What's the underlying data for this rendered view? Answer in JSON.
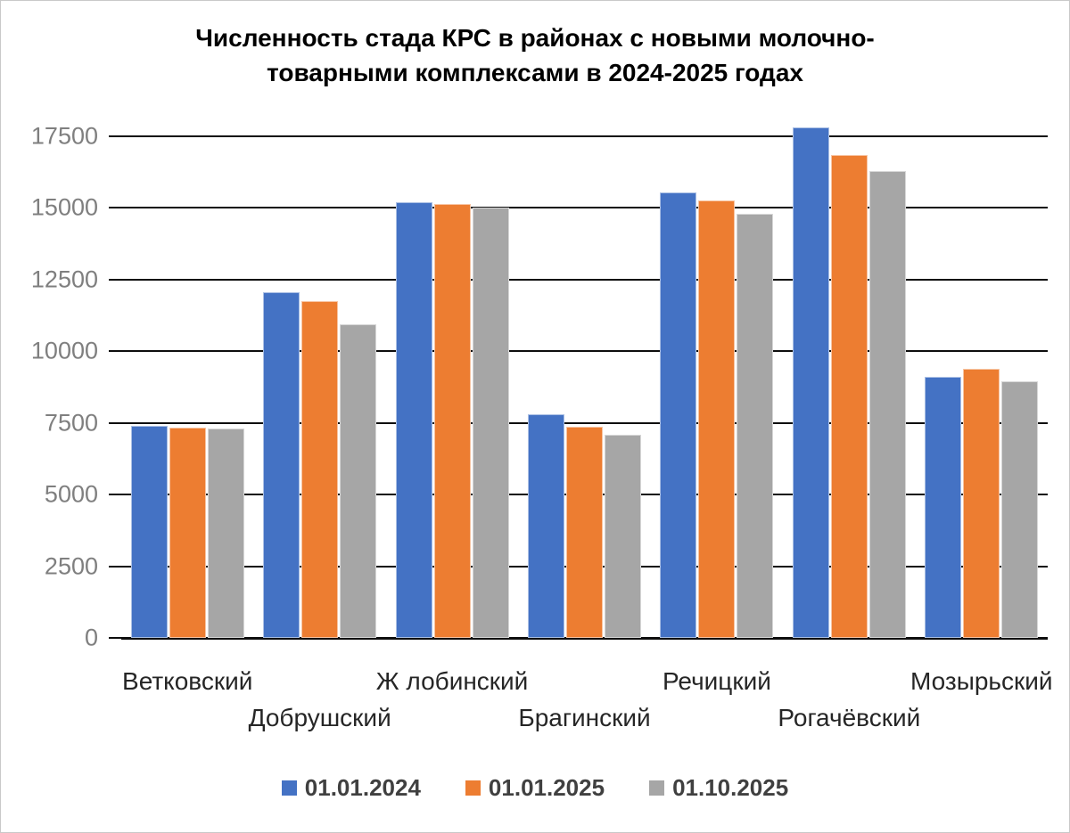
{
  "chart_data": {
    "type": "bar",
    "title": "Численность стада КРС в районах с новыми молочно-товарными комплексами в 2024-2025 годах",
    "title_lines": [
      "Численность стада КРС в районах с новыми молочно-",
      "товарными комплексами в 2024-2025 годах"
    ],
    "categories": [
      "Ветковский",
      "Добрушский",
      "Ж лобинский",
      "Брагинский",
      "Речицкий",
      "Рогачёвский",
      "Мозырьский"
    ],
    "series": [
      {
        "name": "01.01.2024",
        "color": "#4472C4",
        "values": [
          7400,
          12050,
          15200,
          7800,
          15550,
          17800,
          9100
        ]
      },
      {
        "name": "01.01.2025",
        "color": "#ED7D31",
        "values": [
          7350,
          11750,
          15150,
          7380,
          15250,
          16850,
          9400
        ]
      },
      {
        "name": "01.10.2025",
        "color": "#A6A6A6",
        "values": [
          7300,
          10950,
          15000,
          7080,
          14800,
          16300,
          8950
        ]
      }
    ],
    "y_axis": {
      "min": 0,
      "max": 17500,
      "step": 2500,
      "ticks": [
        0,
        2500,
        5000,
        7500,
        10000,
        12500,
        15000,
        17500
      ]
    },
    "grid": true,
    "legend_position": "bottom",
    "colors": {
      "gridline": "#0d0d0d",
      "y_tick_label": "#7f7f7f",
      "x_category_label": "#262626",
      "legend_text": "#404040",
      "title": "#000000",
      "background": "#ffffff",
      "frame_border": "#c9c9c9"
    }
  }
}
